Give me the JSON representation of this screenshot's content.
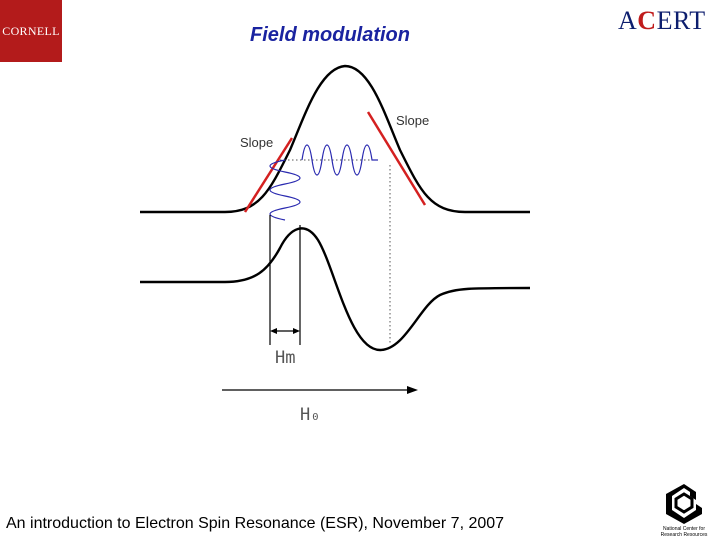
{
  "header": {
    "title": "Field modulation",
    "left_logo_text": "CORNELL",
    "right_logo_text": "ACERT"
  },
  "diagram": {
    "slope_label_left": "Slope",
    "slope_label_right": "Slope",
    "hm_label": "Hm",
    "h0_label": "H₀"
  },
  "footer": {
    "text": "An introduction to Electron Spin Resonance (ESR), November 7, 2007",
    "ncrr_logo_text": "National Center for Research Resources"
  },
  "colors": {
    "title": "#1a23a0",
    "slope_line": "#d42020",
    "modulation_wave": "#2a2ab0",
    "curve": "#000000",
    "cornell_red": "#b31b1b"
  }
}
